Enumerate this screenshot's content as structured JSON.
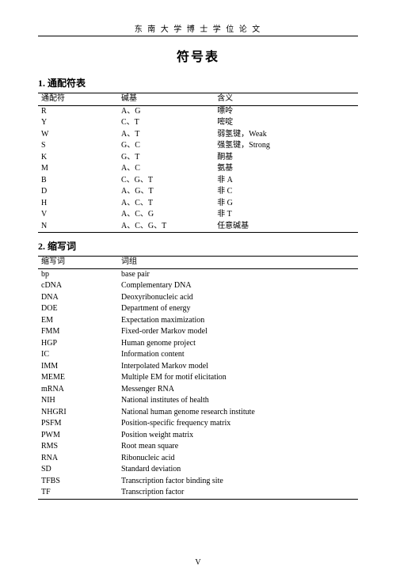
{
  "header": "东 南 大 学 博 士 学 位 论 文",
  "title": "符号表",
  "section1": {
    "no": "1.",
    "name": "通配符表"
  },
  "section2": {
    "no": "2.",
    "name": "缩写词"
  },
  "table1": {
    "head": {
      "c1": "通配符",
      "c2": "碱基",
      "c3": "含义"
    },
    "rows": [
      {
        "c1": "R",
        "c2": "A、G",
        "c3": "嘌呤"
      },
      {
        "c1": "Y",
        "c2": "C、T",
        "c3": "嘧啶"
      },
      {
        "c1": "W",
        "c2": "A、T",
        "c3": "弱氢键，Weak"
      },
      {
        "c1": "S",
        "c2": "G、C",
        "c3": "强氢键，Strong"
      },
      {
        "c1": "K",
        "c2": "G、T",
        "c3": "酮基"
      },
      {
        "c1": "M",
        "c2": "A、C",
        "c3": "氨基"
      },
      {
        "c1": "B",
        "c2": "C、G、T",
        "c3": "非 A"
      },
      {
        "c1": "D",
        "c2": "A、G、T",
        "c3": "非 C"
      },
      {
        "c1": "H",
        "c2": "A、C、T",
        "c3": "非 G"
      },
      {
        "c1": "V",
        "c2": "A、C、G",
        "c3": "非 T"
      },
      {
        "c1": "N",
        "c2": "A、C、G、T",
        "c3": "任意碱基"
      }
    ]
  },
  "table2": {
    "head": {
      "c1": "缩写词",
      "c2": "词组"
    },
    "rows": [
      {
        "c1": "bp",
        "c2": "base pair"
      },
      {
        "c1": "cDNA",
        "c2": "Complementary DNA"
      },
      {
        "c1": "DNA",
        "c2": "Deoxyribonucleic acid"
      },
      {
        "c1": "DOE",
        "c2": "Department of energy"
      },
      {
        "c1": "EM",
        "c2": "Expectation maximization"
      },
      {
        "c1": "FMM",
        "c2": "Fixed-order Markov model"
      },
      {
        "c1": "HGP",
        "c2": "Human genome project"
      },
      {
        "c1": "IC",
        "c2": "Information content"
      },
      {
        "c1": "IMM",
        "c2": "Interpolated Markov model"
      },
      {
        "c1": "MEME",
        "c2": "Multiple EM for motif elicitation"
      },
      {
        "c1": "mRNA",
        "c2": "Messenger RNA"
      },
      {
        "c1": "NIH",
        "c2": "National institutes of health"
      },
      {
        "c1": "NHGRI",
        "c2": "National human genome research institute"
      },
      {
        "c1": "PSFM",
        "c2": "Position-specific frequency matrix"
      },
      {
        "c1": "PWM",
        "c2": "Position weight matrix"
      },
      {
        "c1": "RMS",
        "c2": "Root mean square"
      },
      {
        "c1": "RNA",
        "c2": "Ribonucleic acid"
      },
      {
        "c1": "SD",
        "c2": "Standard deviation"
      },
      {
        "c1": "TFBS",
        "c2": "Transcription factor binding site"
      },
      {
        "c1": "TF",
        "c2": "Transcription factor"
      }
    ]
  },
  "page_number": "V"
}
